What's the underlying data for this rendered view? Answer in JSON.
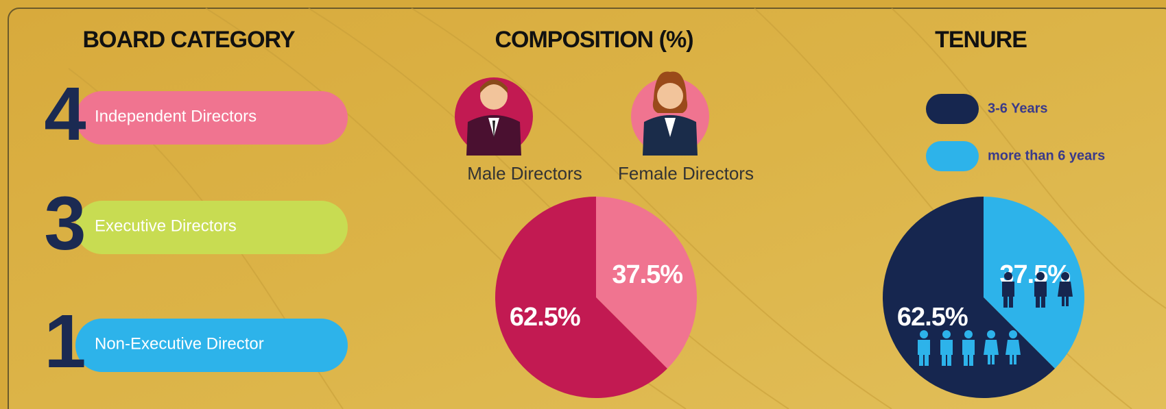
{
  "board_category": {
    "title": "BOARD CATEGORY",
    "items": [
      {
        "count": 4,
        "label": "Independent Directors"
      },
      {
        "count": 3,
        "label": "Executive Directors"
      },
      {
        "count": 1,
        "label": "Non-Executive Director"
      }
    ]
  },
  "chart_data": [
    {
      "type": "pie",
      "title": "COMPOSITION (%)",
      "categories": [
        "Male Directors",
        "Female Directors"
      ],
      "values": [
        62.5,
        37.5
      ],
      "value_labels": [
        "62.5%",
        "37.5%"
      ],
      "colors": [
        "#c21a52",
        "#f07490"
      ]
    },
    {
      "type": "pie",
      "title": "TENURE",
      "categories": [
        "3-6 Years",
        "more than 6 years"
      ],
      "values": [
        62.5,
        37.5
      ],
      "value_labels": [
        "62.5%",
        "37.5%"
      ],
      "colors": [
        "#16264f",
        "#2db3ea"
      ]
    }
  ]
}
